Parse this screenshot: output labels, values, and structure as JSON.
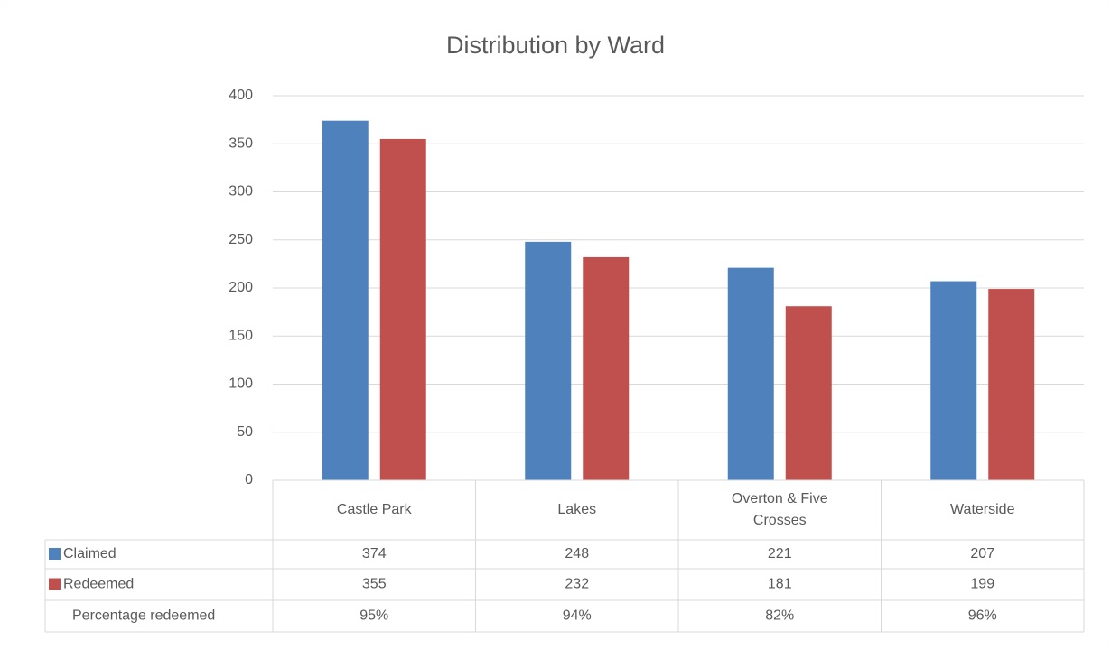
{
  "chart_data": {
    "type": "bar",
    "title": "Distribution by Ward",
    "categories": [
      "Castle Park",
      "Lakes",
      "Overton & Five Crosses",
      "Waterside"
    ],
    "series": [
      {
        "name": "Claimed",
        "color": "#4f81bd",
        "values": [
          374,
          248,
          221,
          207
        ]
      },
      {
        "name": "Redeemed",
        "color": "#c0504d",
        "values": [
          355,
          232,
          181,
          199
        ]
      },
      {
        "name": "Percentage redeemed",
        "values": [
          95,
          94,
          82,
          96
        ],
        "value_labels": [
          "95%",
          "94%",
          "82%",
          "96%"
        ]
      }
    ],
    "ylim": [
      0,
      400
    ],
    "yticks": [
      0,
      50,
      100,
      150,
      200,
      250,
      300,
      350,
      400
    ],
    "grid": true,
    "data_table": true
  }
}
